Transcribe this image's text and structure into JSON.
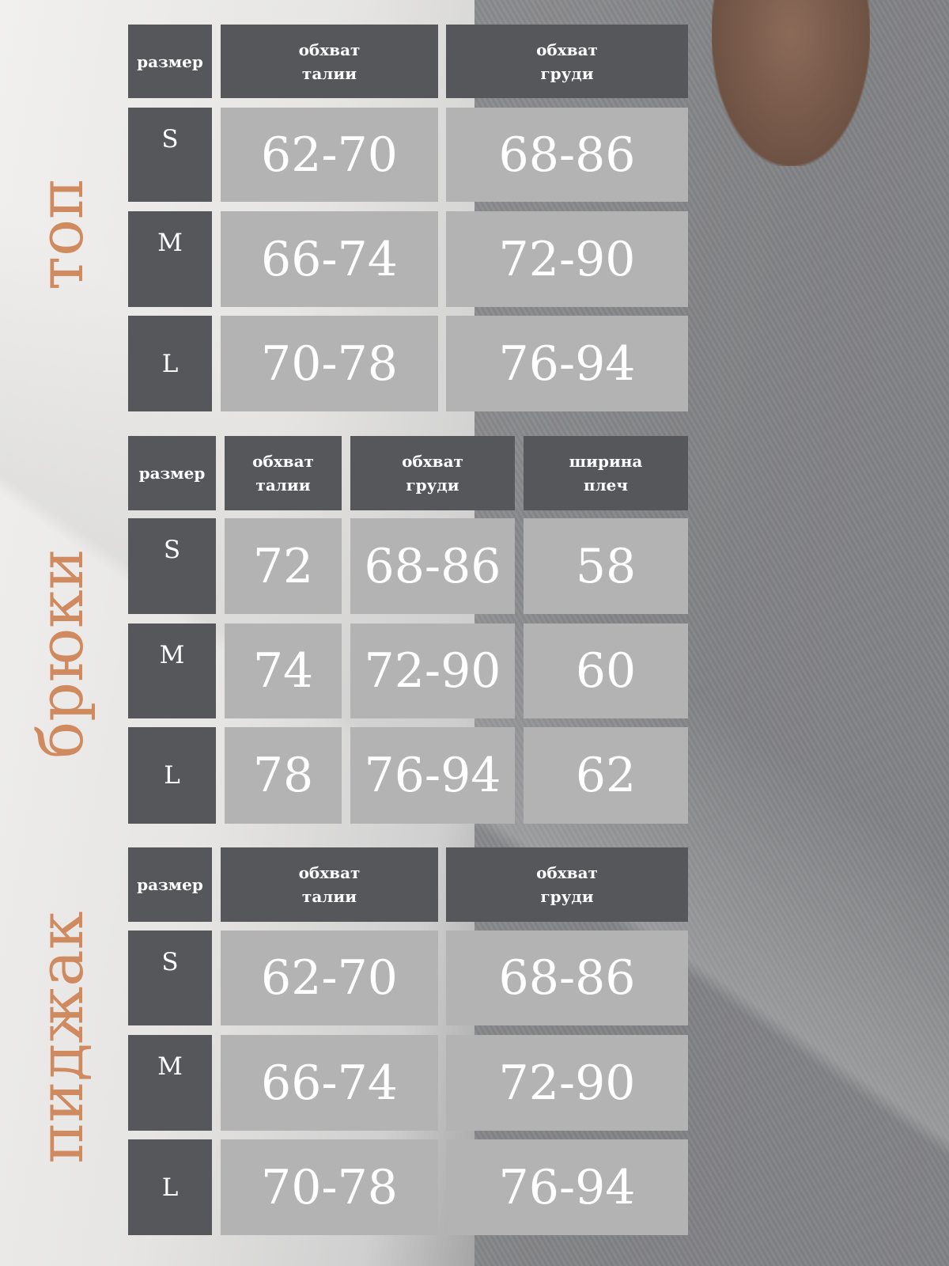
{
  "colors": {
    "header_bg": "#56575b",
    "value_bg": "#b3b3b3",
    "section_label": "#d08a5f",
    "text": "#ffffff"
  },
  "tables": [
    {
      "section": "топ",
      "headers": [
        "размер",
        "обхват\nталии",
        "обхват\nгруди"
      ],
      "rows": [
        [
          "S",
          "62-70",
          "68-86"
        ],
        [
          "M",
          "66-74",
          "72-90"
        ],
        [
          "L",
          "70-78",
          "76-94"
        ]
      ]
    },
    {
      "section": "брюки",
      "headers": [
        "размер",
        "обхват\nталии",
        "обхват\nгруди",
        "ширина\nплеч"
      ],
      "rows": [
        [
          "S",
          "72",
          "68-86",
          "58"
        ],
        [
          "M",
          "74",
          "72-90",
          "60"
        ],
        [
          "L",
          "78",
          "76-94",
          "62"
        ]
      ]
    },
    {
      "section": "пиджак",
      "headers": [
        "размер",
        "обхват\nталии",
        "обхват\nгруди"
      ],
      "rows": [
        [
          "S",
          "62-70",
          "68-86"
        ],
        [
          "M",
          "66-74",
          "72-90"
        ],
        [
          "L",
          "70-78",
          "76-94"
        ]
      ]
    }
  ]
}
